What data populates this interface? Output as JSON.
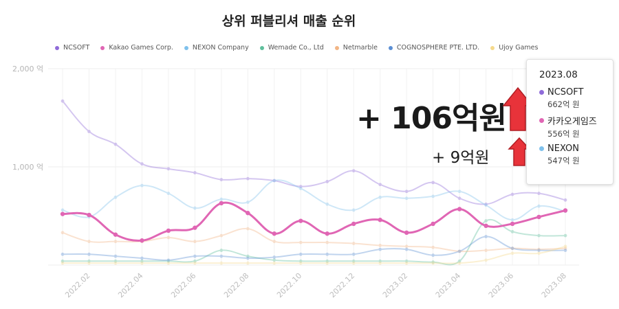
{
  "chart_data": {
    "type": "line",
    "title": "상위 퍼블리셔 매출 순위",
    "ytick_labels": [
      "2,000 억",
      "1,000 억"
    ],
    "ylim": [
      0,
      2000
    ],
    "grid": true,
    "legend_position": "top",
    "x_tick_labels": [
      "2022.02",
      "2022.04",
      "2022.06",
      "2022.08",
      "2022.10",
      "2022.12",
      "2023.02",
      "2023.04",
      "2023.06",
      "2023.08"
    ],
    "x": [
      "2022.01",
      "2022.02",
      "2022.03",
      "2022.04",
      "2022.05",
      "2022.06",
      "2022.07",
      "2022.08",
      "2022.09",
      "2022.10",
      "2022.11",
      "2022.12",
      "2023.01",
      "2023.02",
      "2023.03",
      "2023.04",
      "2023.05",
      "2023.06",
      "2023.07",
      "2023.08"
    ],
    "series": [
      {
        "name": "NCSOFT",
        "color": "#8f6bd9",
        "highlight": false,
        "values": [
          1670,
          1360,
          1230,
          1030,
          980,
          940,
          870,
          880,
          860,
          800,
          850,
          960,
          820,
          750,
          840,
          680,
          620,
          720,
          730,
          662
        ]
      },
      {
        "name": "Kakao Games Corp.",
        "color": "#e066b4",
        "highlight": true,
        "values": [
          520,
          510,
          310,
          250,
          350,
          380,
          630,
          530,
          320,
          450,
          320,
          420,
          460,
          330,
          420,
          570,
          400,
          420,
          490,
          556
        ]
      },
      {
        "name": "NEXON Company",
        "color": "#7fc1ec",
        "highlight": false,
        "values": [
          560,
          490,
          690,
          810,
          730,
          580,
          670,
          640,
          860,
          780,
          620,
          560,
          690,
          680,
          700,
          750,
          610,
          460,
          600,
          547
        ]
      },
      {
        "name": "Wemade Co., Ltd",
        "color": "#5fbf9c",
        "highlight": false,
        "values": [
          40,
          40,
          40,
          40,
          40,
          40,
          150,
          90,
          50,
          40,
          40,
          40,
          40,
          40,
          30,
          40,
          450,
          340,
          300,
          300
        ]
      },
      {
        "name": "Netmarble",
        "color": "#f2b585",
        "highlight": false,
        "values": [
          330,
          240,
          240,
          240,
          280,
          240,
          300,
          370,
          240,
          230,
          230,
          220,
          200,
          190,
          180,
          140,
          150,
          170,
          160,
          170
        ]
      },
      {
        "name": "COGNOSPHERE PTE. LTD.",
        "color": "#5b8fd4",
        "highlight": false,
        "values": [
          110,
          110,
          90,
          70,
          50,
          90,
          90,
          70,
          80,
          110,
          110,
          110,
          160,
          160,
          100,
          140,
          290,
          170,
          150,
          150
        ]
      },
      {
        "name": "Ujoy Games",
        "color": "#f5d98b",
        "highlight": false,
        "values": [
          20,
          20,
          20,
          20,
          20,
          20,
          20,
          20,
          20,
          20,
          20,
          20,
          20,
          20,
          20,
          20,
          50,
          120,
          120,
          190
        ]
      }
    ]
  },
  "annotations": {
    "big": "+ 106억원",
    "small": "+ 9억원",
    "arrow_color": "#e8333a"
  },
  "tooltip": {
    "title": "2023.08",
    "rows": [
      {
        "name": "NCSOFT",
        "value": "662억 원",
        "color": "#8f6bd9"
      },
      {
        "name": "카카오게임즈",
        "value": "556억 원",
        "color": "#e066b4"
      },
      {
        "name": "NEXON",
        "value": "547억 원",
        "color": "#7fc1ec"
      }
    ]
  }
}
